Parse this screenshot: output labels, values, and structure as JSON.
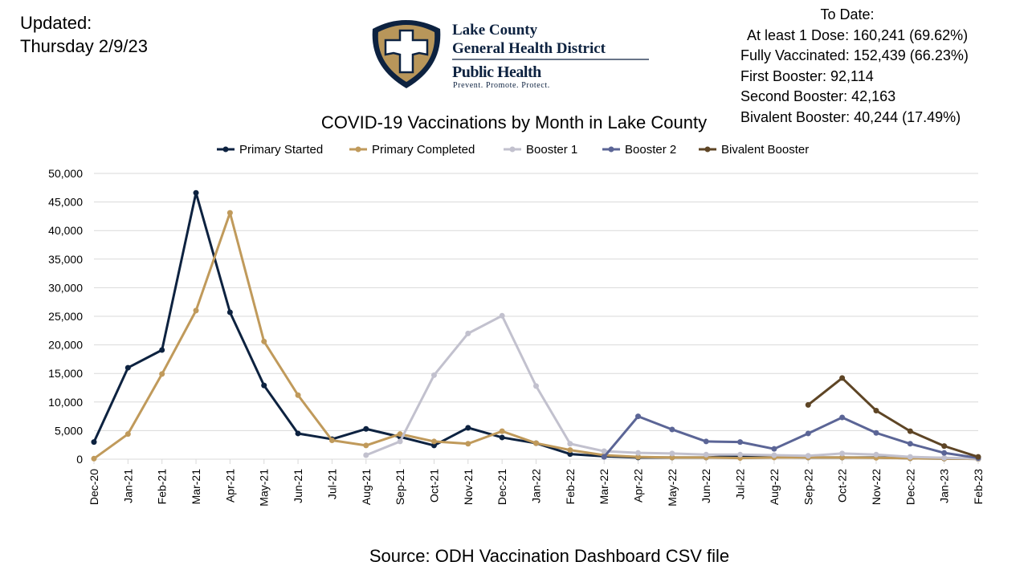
{
  "updated": {
    "line1": "Updated:",
    "line2": "Thursday 2/9/23"
  },
  "logo": {
    "line1": "Lake County",
    "line2": "General Health District",
    "line3": "Public Health",
    "tagline": "Prevent. Promote. Protect.",
    "colors": {
      "navy": "#0d2240",
      "gold": "#b8965a"
    }
  },
  "to_date": {
    "header": "To Date:",
    "lines": [
      "At least 1 Dose: 160,241 (69.62%)",
      "Fully Vaccinated: 152,439 (66.23%)",
      "First Booster: 92,114",
      "Second Booster: 42,163",
      "Bivalent Booster: 40,244 (17.49%)"
    ]
  },
  "source": "Source:  ODH Vaccination Dashboard CSV file",
  "chart_data": {
    "type": "line",
    "title": "COVID-19 Vaccinations by Month in Lake County",
    "legend_position": "top",
    "grid": "horizontal",
    "ylim": [
      0,
      50000
    ],
    "yticks": [
      0,
      5000,
      10000,
      15000,
      20000,
      25000,
      30000,
      35000,
      40000,
      45000,
      50000
    ],
    "ytick_labels": [
      "0",
      "5,000",
      "10,000",
      "15,000",
      "20,000",
      "25,000",
      "30,000",
      "35,000",
      "40,000",
      "45,000",
      "50,000"
    ],
    "categories": [
      "Dec-20",
      "Jan-21",
      "Feb-21",
      "Mar-21",
      "Apr-21",
      "May-21",
      "Jun-21",
      "Jul-21",
      "Aug-21",
      "Sep-21",
      "Oct-21",
      "Nov-21",
      "Dec-21",
      "Jan-22",
      "Feb-22",
      "Mar-22",
      "Apr-22",
      "May-22",
      "Jun-22",
      "Jul-22",
      "Aug-22",
      "Sep-22",
      "Oct-22",
      "Nov-22",
      "Dec-22",
      "Jan-23",
      "Feb-23"
    ],
    "series": [
      {
        "name": "Primary Started",
        "color": "#0d2240",
        "values": [
          3000,
          16000,
          19100,
          46600,
          25700,
          12900,
          4500,
          3500,
          5300,
          3900,
          2400,
          5500,
          3800,
          2800,
          900,
          500,
          300,
          300,
          300,
          600,
          400,
          300,
          300,
          300,
          150,
          100,
          50
        ]
      },
      {
        "name": "Primary Completed",
        "color": "#c09a5b",
        "values": [
          100,
          4400,
          14900,
          26000,
          43100,
          20600,
          11200,
          3300,
          2400,
          4400,
          3100,
          2700,
          4900,
          2800,
          1600,
          700,
          400,
          300,
          300,
          200,
          300,
          300,
          300,
          250,
          150,
          100,
          50
        ]
      },
      {
        "name": "Booster 1",
        "color": "#c2c1ce",
        "values": [
          null,
          null,
          null,
          null,
          null,
          null,
          null,
          null,
          700,
          3100,
          14700,
          22000,
          25100,
          12800,
          2700,
          1400,
          1100,
          1000,
          800,
          800,
          700,
          600,
          1000,
          800,
          400,
          250,
          100
        ]
      },
      {
        "name": "Booster 2",
        "color": "#5b6596",
        "values": [
          null,
          null,
          null,
          null,
          null,
          null,
          null,
          null,
          null,
          null,
          null,
          null,
          null,
          null,
          null,
          400,
          7500,
          5200,
          3100,
          3000,
          1800,
          4500,
          7300,
          4600,
          2700,
          1100,
          200
        ]
      },
      {
        "name": "Bivalent Booster",
        "color": "#5e4525",
        "values": [
          null,
          null,
          null,
          null,
          null,
          null,
          null,
          null,
          null,
          null,
          null,
          null,
          null,
          null,
          null,
          null,
          null,
          null,
          null,
          null,
          null,
          9500,
          14200,
          8500,
          4900,
          2300,
          400
        ]
      }
    ]
  }
}
